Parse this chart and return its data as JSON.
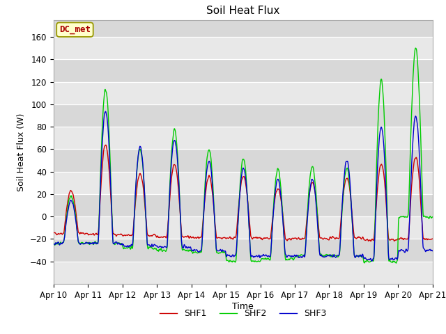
{
  "title": "Soil Heat Flux",
  "xlabel": "Time",
  "ylabel": "Soil Heat Flux (W)",
  "ylim": [
    -60,
    175
  ],
  "yticks": [
    -40,
    -20,
    0,
    20,
    40,
    60,
    80,
    100,
    120,
    140,
    160
  ],
  "x_tick_labels": [
    "Apr 10",
    "Apr 11",
    "Apr 12",
    "Apr 13",
    "Apr 14",
    "Apr 15",
    "Apr 16",
    "Apr 17",
    "Apr 18",
    "Apr 19",
    "Apr 20",
    "Apr 21"
  ],
  "colors": {
    "SHF1": "#cc0000",
    "SHF2": "#00cc00",
    "SHF3": "#0000cc"
  },
  "annotation_text": "DC_met",
  "annotation_bg": "#ffffcc",
  "annotation_border": "#999900",
  "plot_bg_light": "#ebebeb",
  "plot_bg_dark": "#d8d8d8",
  "grid_color": "#ffffff",
  "linewidth": 1.0,
  "band_colors": [
    "#e8e8e8",
    "#d8d8d8"
  ],
  "shf1_amps": [
    38,
    80,
    55,
    65,
    55,
    55,
    45,
    50,
    53,
    68,
    73
  ],
  "shf1_nights": [
    -15,
    -16,
    -17,
    -18,
    -19,
    -19,
    -20,
    -20,
    -19,
    -21,
    -20
  ],
  "shf2_amps": [
    42,
    138,
    88,
    108,
    92,
    92,
    80,
    80,
    78,
    162,
    150
  ],
  "shf2_nights": [
    -24,
    -24,
    -28,
    -30,
    -32,
    -40,
    -38,
    -35,
    -35,
    -40,
    0
  ],
  "shf3_amps": [
    38,
    118,
    88,
    95,
    80,
    78,
    68,
    68,
    85,
    118,
    120
  ],
  "shf3_nights": [
    -24,
    -24,
    -26,
    -27,
    -30,
    -35,
    -35,
    -35,
    -35,
    -38,
    -30
  ]
}
